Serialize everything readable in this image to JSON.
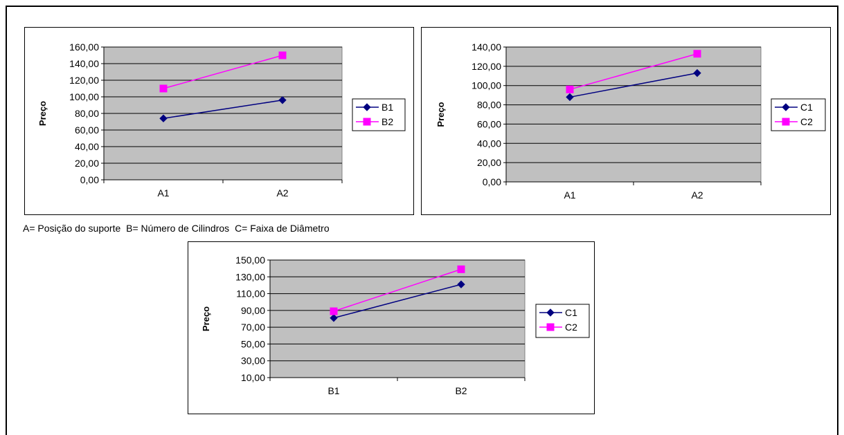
{
  "caption": {
    "part_a": "A= Posição do suporte",
    "part_b": "B= Número de Cilindros",
    "part_c": "C= Faixa de Diâmetro"
  },
  "chart_data": [
    {
      "type": "line",
      "ylabel": "Preço",
      "categories": [
        "A1",
        "A2"
      ],
      "ylim": [
        0,
        160
      ],
      "yticks": [
        "0,00",
        "20,00",
        "40,00",
        "60,00",
        "80,00",
        "100,00",
        "120,00",
        "140,00",
        "160,00"
      ],
      "grid": true,
      "legend": "right",
      "series": [
        {
          "name": "B1",
          "values": [
            74,
            96
          ],
          "color": "#000080",
          "marker": "diamond"
        },
        {
          "name": "B2",
          "values": [
            110,
            150
          ],
          "color": "#ff00ff",
          "marker": "square"
        }
      ]
    },
    {
      "type": "line",
      "ylabel": "Preço",
      "categories": [
        "A1",
        "A2"
      ],
      "ylim": [
        0,
        140
      ],
      "yticks": [
        "0,00",
        "20,00",
        "40,00",
        "60,00",
        "80,00",
        "100,00",
        "120,00",
        "140,00"
      ],
      "grid": true,
      "legend": "right",
      "series": [
        {
          "name": "C1",
          "values": [
            88,
            113
          ],
          "color": "#000080",
          "marker": "diamond"
        },
        {
          "name": "C2",
          "values": [
            96,
            133
          ],
          "color": "#ff00ff",
          "marker": "square"
        }
      ]
    },
    {
      "type": "line",
      "ylabel": "Preço",
      "categories": [
        "B1",
        "B2"
      ],
      "ylim": [
        10,
        150
      ],
      "yticks": [
        "10,00",
        "30,00",
        "50,00",
        "70,00",
        "90,00",
        "110,00",
        "130,00",
        "150,00"
      ],
      "grid": true,
      "legend": "right",
      "series": [
        {
          "name": "C1",
          "values": [
            81,
            121
          ],
          "color": "#000080",
          "marker": "diamond"
        },
        {
          "name": "C2",
          "values": [
            89,
            139
          ],
          "color": "#ff00ff",
          "marker": "square"
        }
      ]
    }
  ]
}
